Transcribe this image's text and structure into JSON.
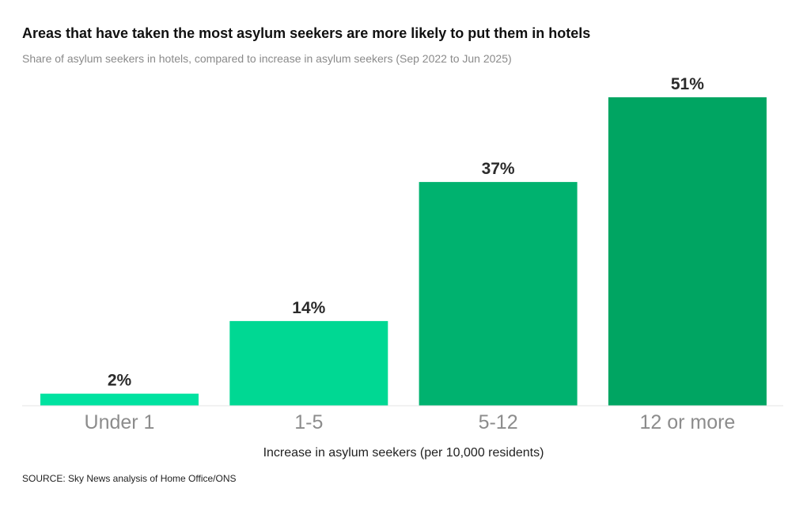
{
  "chart_data": {
    "type": "bar",
    "title": "Areas that have taken the most asylum seekers are more likely to put them in hotels",
    "subtitle": "Share of asylum seekers in hotels, compared to increase in asylum seekers (Sep 2022 to Jun 2025)",
    "categories": [
      "Under 1",
      "1-5",
      "5-12",
      "12 or more"
    ],
    "values": [
      2,
      14,
      37,
      51
    ],
    "value_labels": [
      "2%",
      "14%",
      "37%",
      "51%"
    ],
    "colors": [
      "#00e2a0",
      "#00d893",
      "#00b26f",
      "#00a562"
    ],
    "xlabel": "Increase in asylum seekers (per 10,000 residents)",
    "ylabel": "",
    "ylim": [
      0,
      51
    ],
    "grid": false,
    "legend": "none"
  },
  "source": "SOURCE: Sky News analysis of Home Office/ONS"
}
